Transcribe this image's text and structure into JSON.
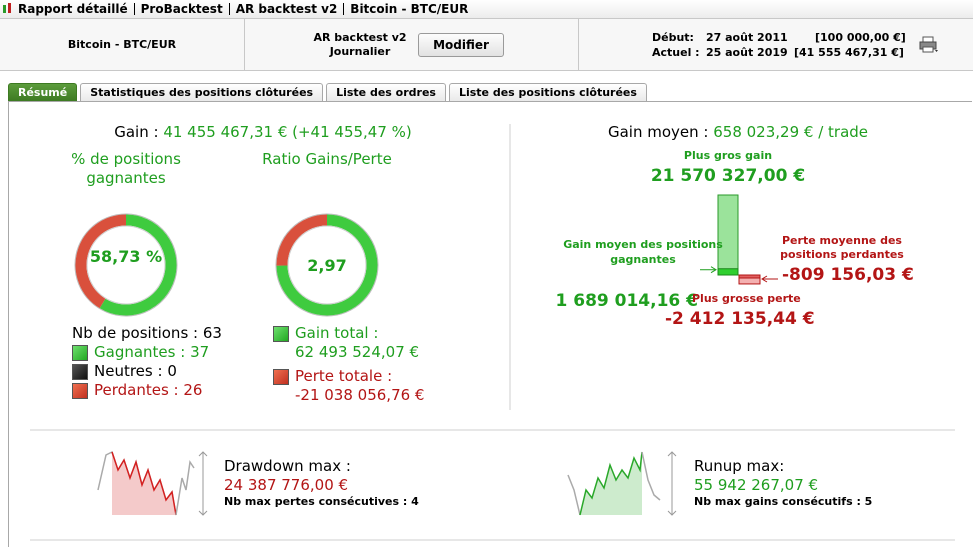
{
  "title_bar": {
    "items": [
      "Rapport détaillé",
      "ProBacktest",
      "AR backtest v2",
      "Bitcoin - BTC/EUR"
    ]
  },
  "header": {
    "instrument": "Bitcoin - BTC/EUR",
    "system": "AR backtest v2",
    "period": "Journalier",
    "button": "Modifier",
    "start_label": "Début:",
    "start_date": "27 août 2011",
    "start_capital": "[100 000,00 €]",
    "current_label": "Actuel :",
    "current_date": "25 août 2019",
    "current_capital": "[41 555 467,31 €]"
  },
  "tabs": [
    "Résumé",
    "Statistiques des positions clôturées",
    "Liste des ordres",
    "Liste des positions clôturées"
  ],
  "summary": {
    "gain_label": "Gain :",
    "gain_value": "41 455 467,31 € (+41 455,47 %)",
    "win_rate": {
      "title": "% de positions gagnantes",
      "value": 58.73,
      "label": "58,73 %"
    },
    "ratio": {
      "title": "Ratio Gains/Perte",
      "value": 2.97,
      "label": "2,97"
    },
    "positions": {
      "label": "Nb de positions :",
      "value": 63,
      "winning": {
        "label": "Gagnantes :",
        "value": 37
      },
      "neutral": {
        "label": "Neutres :",
        "value": 0
      },
      "losing": {
        "label": "Perdantes :",
        "value": 26
      }
    },
    "gain_total": {
      "label": "Gain total :",
      "value_label": "62 493 524,07 €"
    },
    "loss_total": {
      "label": "Perte totale :",
      "value_label": "-21 038 056,76 €"
    },
    "avg_gain": {
      "label": "Gain moyen :",
      "value": "658 023,29 € / trade"
    },
    "extremes": {
      "max_gain": {
        "label": "Plus gros gain",
        "value": 21570327.0,
        "value_label": "21 570 327,00 €"
      },
      "avg_win": {
        "label": "Gain moyen des positions gagnantes",
        "value": 1689014.16,
        "value_label": "1 689 014,16 €"
      },
      "avg_loss": {
        "label": "Perte moyenne des positions perdantes",
        "value": -809156.03,
        "value_label": "-809 156,03 €"
      },
      "max_loss": {
        "label": "Plus grosse perte",
        "value": -2412135.44,
        "value_label": "-2 412 135,44 €"
      }
    },
    "drawdown": {
      "label": "Drawdown max :",
      "value": "24 387 776,00 €",
      "streak": "Nb max pertes consécutives : 4"
    },
    "runup": {
      "label": "Runup max:",
      "value": "55 942 267,07 €",
      "streak": "Nb max gains consécutifs : 5"
    }
  }
}
